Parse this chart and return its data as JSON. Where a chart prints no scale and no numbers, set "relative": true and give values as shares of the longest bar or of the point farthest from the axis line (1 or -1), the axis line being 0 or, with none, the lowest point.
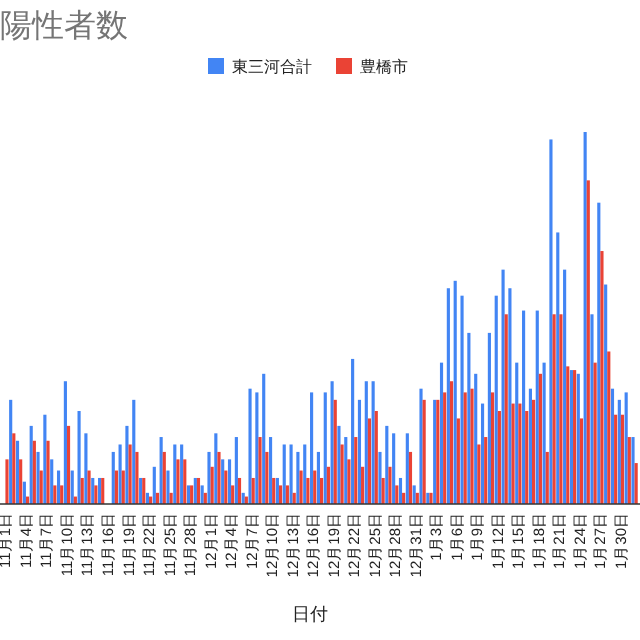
{
  "chart_data": {
    "type": "bar",
    "title": "陽性者数",
    "xlabel": "日付",
    "relative": true,
    "legend": "top",
    "categories": [
      "11月1日",
      null,
      null,
      "11月4日",
      null,
      null,
      "11月7日",
      null,
      null,
      "11月10日",
      null,
      null,
      "11月13日",
      null,
      null,
      "11月16日",
      null,
      null,
      "11月19日",
      null,
      null,
      "11月22日",
      null,
      null,
      "11月25日",
      null,
      null,
      "11月28日",
      null,
      null,
      "12月1日",
      null,
      null,
      "12月4日",
      null,
      null,
      "12月7日",
      null,
      null,
      "12月10日",
      null,
      null,
      "12月13日",
      null,
      null,
      "12月16日",
      null,
      null,
      "12月19日",
      null,
      null,
      "12月22日",
      null,
      null,
      "12月25日",
      null,
      null,
      "12月28日",
      null,
      null,
      "12月31日",
      null,
      null,
      "1月3日",
      null,
      null,
      "1月6日",
      null,
      null,
      "1月9日",
      null,
      null,
      "1月12日",
      null,
      null,
      "1月15日",
      null,
      null,
      "1月18日",
      null,
      null,
      "1月21日",
      null,
      null,
      "1月24日",
      null,
      null,
      "1月27日",
      null,
      null,
      "1月30日",
      null,
      null
    ],
    "series": [
      {
        "name": "東三河合計",
        "color": "#4285f4",
        "values": [
          null,
          0.28,
          0.17,
          0.06,
          0.21,
          0.14,
          0.24,
          0.12,
          0.09,
          0.33,
          0.09,
          0.25,
          0.19,
          0.07,
          0.07,
          0,
          0.14,
          0.16,
          0.21,
          0.28,
          0.07,
          0.03,
          0.1,
          0.18,
          0.09,
          0.16,
          0.16,
          0.05,
          0.07,
          0.05,
          0.14,
          0.19,
          0.12,
          0.12,
          0.18,
          0.03,
          0.31,
          0.3,
          0.35,
          0.18,
          0.07,
          0.16,
          0.16,
          0.14,
          0.16,
          0.3,
          0.14,
          0.3,
          0.33,
          0.21,
          0.18,
          0.39,
          0.28,
          0.33,
          0.33,
          0.14,
          0.21,
          0.19,
          0.07,
          0.19,
          0.05,
          0.31,
          0.03,
          0.28,
          0.38,
          0.58,
          0.6,
          0.56,
          0.46,
          0.35,
          0.27,
          0.46,
          0.56,
          0.63,
          0.58,
          0.38,
          0.52,
          0.31,
          0.52,
          0.38,
          0.98,
          0.73,
          0.63,
          0.36,
          0.35,
          1,
          0.51,
          0.81,
          0.59,
          0.31,
          0.28,
          0.3,
          0.18
        ]
      },
      {
        "name": "豊橋市",
        "color": "#ea4335",
        "values": [
          0.12,
          0.19,
          0.12,
          0.02,
          0.17,
          0.09,
          0.17,
          0.05,
          0.05,
          0.21,
          0.02,
          0.07,
          0.09,
          0.05,
          0.07,
          0,
          0.09,
          0.09,
          0.16,
          0.14,
          0.07,
          0.02,
          0.03,
          0.14,
          0.03,
          0.12,
          0.12,
          0.05,
          0.07,
          0.03,
          0.1,
          0.14,
          0.09,
          0.05,
          0.07,
          0.02,
          0.07,
          0.18,
          0.14,
          0.07,
          0.05,
          0.05,
          0.03,
          0.09,
          0.07,
          0.09,
          0.07,
          0.1,
          0.28,
          0.16,
          0.12,
          0.18,
          0.1,
          0.23,
          0.25,
          0.07,
          0.1,
          0.05,
          0.03,
          0.14,
          0.03,
          0.28,
          0.03,
          0.28,
          0.3,
          0.33,
          0.23,
          0.3,
          0.31,
          0.16,
          0.18,
          0.3,
          0.25,
          0.51,
          0.27,
          0.27,
          0.25,
          0.28,
          0.35,
          0.14,
          0.51,
          0.51,
          0.37,
          0.36,
          0.23,
          0.87,
          0.38,
          0.68,
          0.41,
          0.24,
          0.24,
          0.18,
          0.11
        ]
      }
    ]
  }
}
